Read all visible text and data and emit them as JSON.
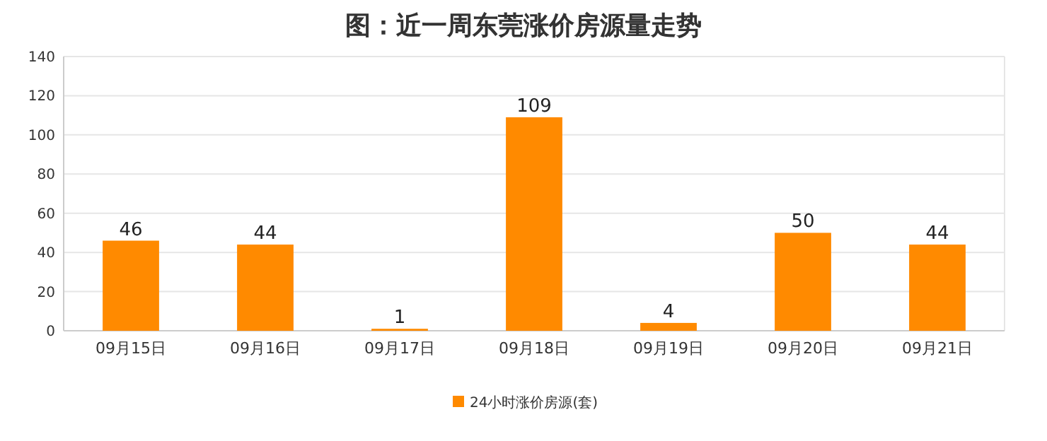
{
  "chart_data": {
    "type": "bar",
    "title": "图：近一周东莞涨价房源量走势",
    "categories": [
      "09月15日",
      "09月16日",
      "09月17日",
      "09月18日",
      "09月19日",
      "09月20日",
      "09月21日"
    ],
    "series": [
      {
        "name": "24小时涨价房源(套)",
        "color": "#ff8a00",
        "values": [
          46,
          44,
          1,
          109,
          4,
          50,
          44
        ]
      }
    ],
    "ylim": [
      0,
      140
    ],
    "yticks": [
      0,
      20,
      40,
      60,
      80,
      100,
      120,
      140
    ],
    "grid": "y",
    "legend": "bottom",
    "data_labels": true
  }
}
